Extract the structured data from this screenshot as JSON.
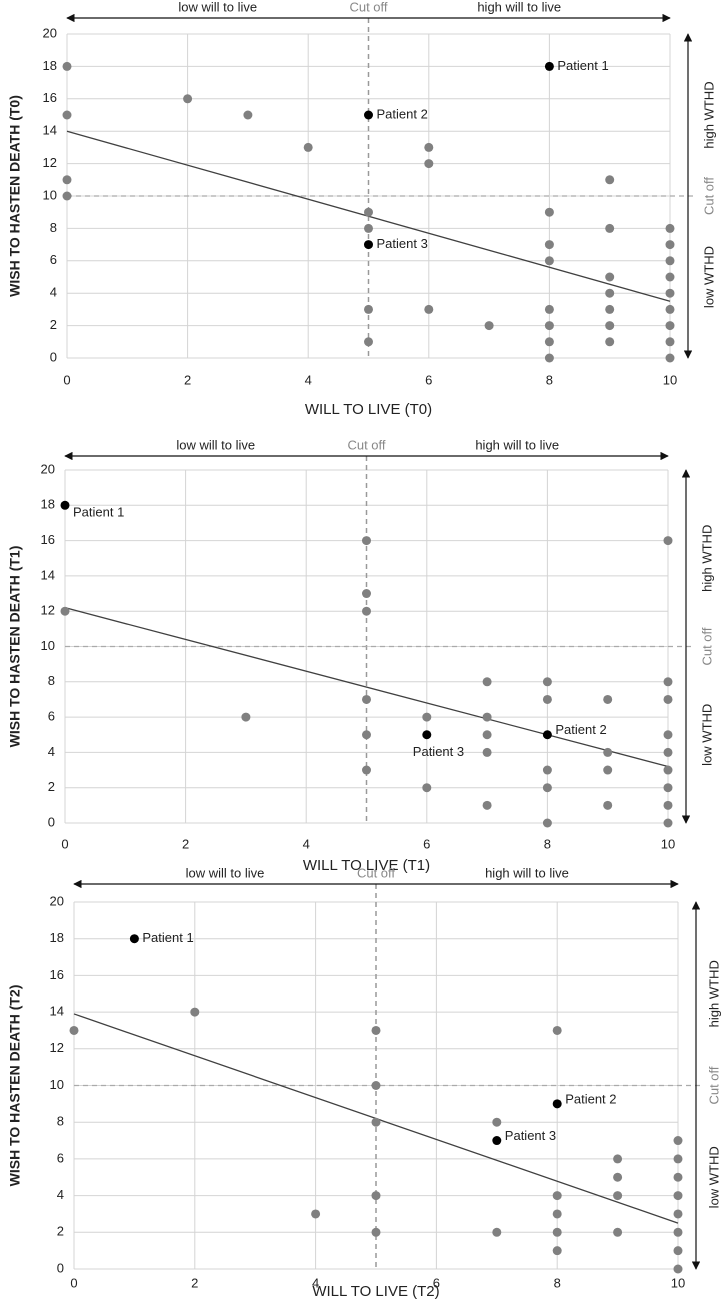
{
  "chart_data": [
    {
      "type": "scatter",
      "xlabel": "WILL TO LIVE (T0)",
      "ylabel": "WISH TO HASTEN DEATH (T0)",
      "xlim": [
        0,
        10
      ],
      "ylim": [
        0,
        20
      ],
      "xticks": [
        0,
        2,
        4,
        6,
        8,
        10
      ],
      "yticks": [
        0,
        2,
        4,
        6,
        8,
        10,
        12,
        14,
        16,
        18,
        20
      ],
      "grid": true,
      "cutoff_x": 5,
      "cutoff_y": 10,
      "top_labels": [
        "low  will to live",
        "Cut off",
        "high will to live"
      ],
      "right_labels": [
        "high  WTHD",
        "Cut off",
        "low  WTHD"
      ],
      "points": {
        "color": "#808080",
        "x": [
          0,
          0,
          0,
          0,
          2,
          3,
          4,
          5,
          5,
          5,
          5,
          6,
          6,
          6,
          7,
          8,
          8,
          8,
          8,
          8,
          8,
          8,
          9,
          9,
          9,
          9,
          9,
          9,
          9,
          10,
          10,
          10,
          10,
          10,
          10,
          10,
          10,
          10
        ],
        "y": [
          18,
          15,
          11,
          10,
          16,
          15,
          13,
          9,
          8,
          3,
          1,
          13,
          12,
          3,
          2,
          9,
          7,
          6,
          3,
          2,
          1,
          0,
          11,
          8,
          5,
          4,
          3,
          2,
          1,
          8,
          7,
          6,
          5,
          4,
          3,
          2,
          1,
          0
        ]
      },
      "patients": {
        "color": "#000000",
        "labels": [
          "Patient 1",
          "Patient 2",
          "Patient 3"
        ],
        "x": [
          8,
          5,
          5
        ],
        "y": [
          18,
          15,
          7
        ]
      },
      "trendline": {
        "color": "#404040",
        "x": [
          0,
          10
        ],
        "y": [
          14,
          3.5
        ]
      }
    },
    {
      "type": "scatter",
      "xlabel": "WILL TO LIVE (T1)",
      "ylabel": "WISH TO HASTEN DEATH (T1)",
      "xlim": [
        0,
        10
      ],
      "ylim": [
        0,
        20
      ],
      "xticks": [
        0,
        2,
        4,
        6,
        8,
        10
      ],
      "yticks": [
        0,
        2,
        4,
        6,
        8,
        10,
        12,
        14,
        16,
        18,
        20
      ],
      "grid": true,
      "cutoff_x": 5,
      "cutoff_y": 10,
      "top_labels": [
        "low  will to live",
        "Cut off",
        "high will to live"
      ],
      "right_labels": [
        "high  WTHD",
        "Cut off",
        "low  WTHD"
      ],
      "points": {
        "color": "#808080",
        "x": [
          0,
          3,
          5,
          5,
          5,
          5,
          5,
          5,
          6,
          6,
          7,
          7,
          7,
          7,
          7,
          8,
          8,
          8,
          8,
          8,
          9,
          9,
          9,
          9,
          10,
          10,
          10,
          10,
          10,
          10,
          10,
          10,
          10
        ],
        "y": [
          12,
          6,
          16,
          13,
          12,
          7,
          5,
          3,
          6,
          2,
          8,
          6,
          5,
          4,
          1,
          8,
          7,
          3,
          2,
          0,
          7,
          4,
          3,
          1,
          16,
          8,
          7,
          5,
          4,
          3,
          2,
          1,
          0
        ]
      },
      "patients": {
        "color": "#000000",
        "labels": [
          "Patient 1",
          "Patient 2",
          "Patient 3"
        ],
        "x": [
          0,
          8,
          6
        ],
        "y": [
          18,
          5,
          5
        ]
      },
      "trendline": {
        "color": "#404040",
        "x": [
          0,
          10
        ],
        "y": [
          12.2,
          3.2
        ]
      }
    },
    {
      "type": "scatter",
      "xlabel": "WILL TO LIVE (T2)",
      "ylabel": "WISH TO HASTEN DEATH (T2)",
      "xlim": [
        0,
        10
      ],
      "ylim": [
        0,
        20
      ],
      "xticks": [
        0,
        2,
        4,
        6,
        8,
        10
      ],
      "yticks": [
        0,
        2,
        4,
        6,
        8,
        10,
        12,
        14,
        16,
        18,
        20
      ],
      "grid": true,
      "cutoff_x": 5,
      "cutoff_y": 10,
      "top_labels": [
        "low  will to live",
        "Cut off",
        "high will to live"
      ],
      "right_labels": [
        "high  WTHD",
        "Cut off",
        "low  WTHD"
      ],
      "points": {
        "color": "#808080",
        "x": [
          0,
          2,
          4,
          5,
          5,
          5,
          5,
          5,
          7,
          7,
          8,
          8,
          8,
          8,
          8,
          9,
          9,
          9,
          9,
          10,
          10,
          10,
          10,
          10,
          10,
          10,
          10
        ],
        "y": [
          13,
          14,
          3,
          13,
          10,
          8,
          4,
          2,
          8,
          2,
          13,
          4,
          3,
          2,
          1,
          6,
          5,
          4,
          2,
          7,
          6,
          5,
          4,
          3,
          2,
          1,
          0
        ]
      },
      "patients": {
        "color": "#000000",
        "labels": [
          "Patient 1",
          "Patient 2",
          "Patient 3"
        ],
        "x": [
          1,
          8,
          7
        ],
        "y": [
          18,
          9,
          7
        ]
      },
      "trendline": {
        "color": "#404040",
        "x": [
          0,
          10
        ],
        "y": [
          13.9,
          2.5
        ]
      }
    }
  ]
}
